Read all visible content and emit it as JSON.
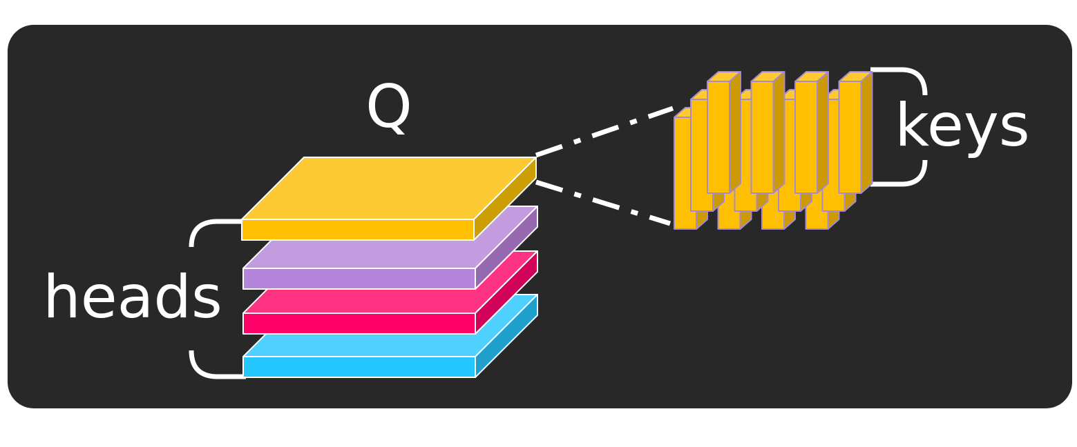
{
  "labels": {
    "query": "Q",
    "heads": "heads",
    "keys": "keys"
  },
  "colors": {
    "panel": "#282828",
    "outline": "#ffffff",
    "query_head": {
      "top": "#fdca33",
      "front": "#ffc004",
      "side": "#cc9f04"
    },
    "head_2": {
      "top": "#c39ce0",
      "front": "#b485db",
      "side": "#9669b0"
    },
    "head_3": {
      "top": "#ff3384",
      "front": "#ff0066",
      "side": "#d10058"
    },
    "head_4": {
      "top": "#50d0fe",
      "front": "#23c7fd",
      "side": "#1f9fcc"
    },
    "key_bar": {
      "top": "#fdca33",
      "front": "#ffc004",
      "side": "#cc9a04",
      "edge": "#a78ad0"
    }
  },
  "keys_grid": {
    "rows": 3,
    "columns": 4
  }
}
